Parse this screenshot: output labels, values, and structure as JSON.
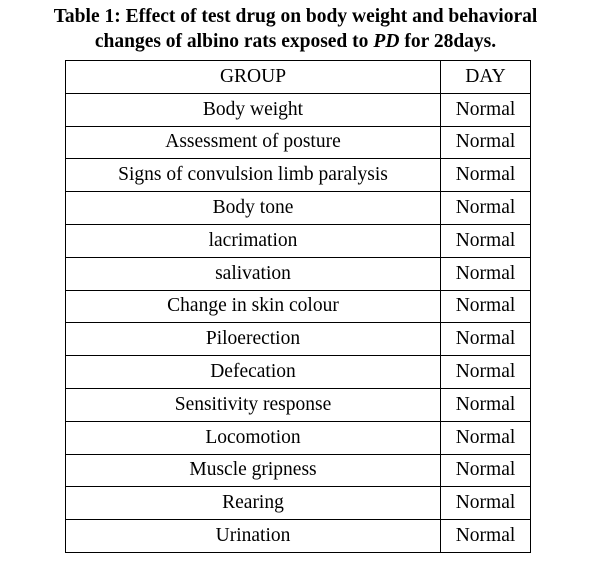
{
  "title": {
    "line1": "Table 1: Effect of test drug on body weight and behavioral",
    "line2_start": "changes of albino rats exposed to",
    "line2_italic": "PD",
    "line2_end": "for 28days."
  },
  "table": {
    "header": [
      "GROUP",
      "DAY"
    ],
    "rows": [
      [
        "Body weight",
        "Normal"
      ],
      [
        "Assessment of posture",
        "Normal"
      ],
      [
        "Signs of convulsion limb paralysis",
        "Normal"
      ],
      [
        "Body tone",
        "Normal"
      ],
      [
        "lacrimation",
        "Normal"
      ],
      [
        "salivation",
        "Normal"
      ],
      [
        "Change in skin colour",
        "Normal"
      ],
      [
        "Piloerection",
        "Normal"
      ],
      [
        "Defecation",
        "Normal"
      ],
      [
        "Sensitivity response",
        "Normal"
      ],
      [
        "Locomotion",
        "Normal"
      ],
      [
        "Muscle gripness",
        "Normal"
      ],
      [
        "Rearing",
        "Normal"
      ],
      [
        "Urination",
        "Normal"
      ]
    ]
  }
}
